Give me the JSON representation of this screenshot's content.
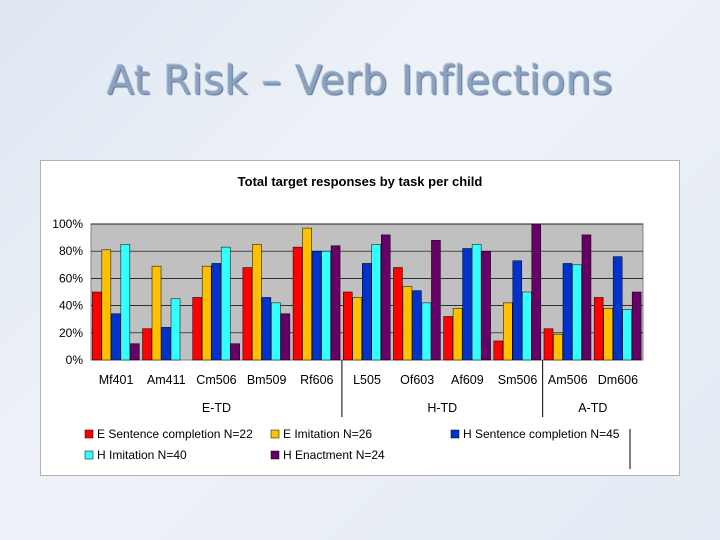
{
  "slide": {
    "title": "At Risk – Verb Inflections"
  },
  "chart_data": {
    "type": "bar",
    "title": "Total target responses by task per child",
    "xlabel": "",
    "ylabel": "",
    "ylim": [
      0,
      100
    ],
    "y_ticks": [
      "0%",
      "20%",
      "40%",
      "60%",
      "80%",
      "100%"
    ],
    "y_tick_values": [
      0,
      20,
      40,
      60,
      80,
      100
    ],
    "grid": true,
    "categories": [
      "Mf401",
      "Am411",
      "Cm506",
      "Bm509",
      "Rf606",
      "L505",
      "Of603",
      "Af609",
      "Sm506",
      "Am506",
      "Dm606"
    ],
    "groups": [
      {
        "label": "E-TD",
        "first": 0,
        "last": 4
      },
      {
        "label": "H-TD",
        "first": 5,
        "last": 8
      },
      {
        "label": "A-TD",
        "first": 9,
        "last": 10
      }
    ],
    "series": [
      {
        "name": "E Sentence completion N=22",
        "color": "#ff0000",
        "values": [
          50,
          23,
          46,
          68,
          83,
          50,
          68,
          32,
          14,
          23,
          46
        ]
      },
      {
        "name": "E Imitation N=26",
        "color": "#ffc000",
        "values": [
          81,
          69,
          69,
          85,
          97,
          46,
          54,
          38,
          42,
          19,
          38
        ]
      },
      {
        "name": "H Sentence completion N=45",
        "color": "#0033cc",
        "values": [
          34,
          24,
          71,
          46,
          80,
          71,
          51,
          82,
          73,
          71,
          76
        ]
      },
      {
        "name": "H Imitation N=40",
        "color": "#33ffff",
        "values": [
          85,
          45,
          83,
          42,
          80,
          85,
          42,
          85,
          50,
          70,
          37
        ]
      },
      {
        "name": "H Enactment N=24",
        "color": "#660066",
        "values": [
          12,
          0,
          12,
          34,
          84,
          92,
          88,
          80,
          100,
          92,
          50
        ]
      }
    ],
    "legend_position": "bottom"
  }
}
